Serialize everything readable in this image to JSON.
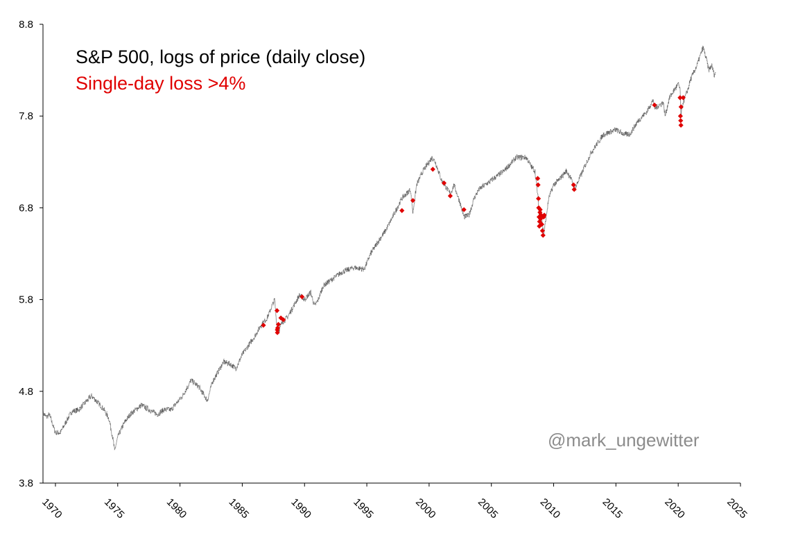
{
  "chart_data": {
    "type": "line",
    "title": "S&P 500, logs of price (daily close)",
    "subtitle": "Single-day loss >4%",
    "watermark": "@mark_ungewitter",
    "xlabel": "",
    "ylabel": "",
    "xlim": [
      1969,
      2025
    ],
    "ylim": [
      3.8,
      8.8
    ],
    "x_ticks": [
      1970,
      1975,
      1980,
      1985,
      1990,
      1995,
      2000,
      2005,
      2010,
      2015,
      2020,
      2025
    ],
    "y_ticks": [
      3.8,
      4.8,
      5.8,
      6.8,
      7.8,
      8.8
    ],
    "y_tick_labels": [
      "3.8",
      "4.8",
      "5.8",
      "6.8",
      "7.8",
      "8.8"
    ],
    "grid": false,
    "colors": {
      "price": "#555555",
      "loss": "#e00000",
      "title": "#000000",
      "subtitle": "#e00000",
      "watermark": "#8c8c8c"
    },
    "series": [
      {
        "name": "S&P 500 log price",
        "x": [
          1969.0,
          1969.3,
          1969.5,
          1970.0,
          1970.4,
          1970.9,
          1971.3,
          1971.9,
          1972.4,
          1972.9,
          1973.4,
          1973.9,
          1974.3,
          1974.6,
          1974.75,
          1975.0,
          1975.5,
          1976.0,
          1976.9,
          1977.5,
          1978.2,
          1978.7,
          1979.3,
          1979.9,
          1980.2,
          1980.9,
          1981.5,
          1982.2,
          1982.6,
          1983.0,
          1983.5,
          1984.0,
          1984.5,
          1985.0,
          1985.5,
          1986.0,
          1986.5,
          1987.0,
          1987.6,
          1987.81,
          1987.9,
          1988.2,
          1988.6,
          1989.0,
          1989.6,
          1990.0,
          1990.5,
          1990.8,
          1991.1,
          1991.5,
          1992.0,
          1993.0,
          1994.0,
          1994.8,
          1995.3,
          1996.0,
          1996.5,
          1997.0,
          1997.8,
          1998.5,
          1998.7,
          1999.0,
          1999.5,
          2000.0,
          2000.25,
          2000.5,
          2001.0,
          2001.7,
          2002.0,
          2002.5,
          2002.8,
          2003.2,
          2003.6,
          2004.0,
          2005.0,
          2006.0,
          2007.0,
          2007.8,
          2008.2,
          2008.5,
          2008.75,
          2008.85,
          2009.0,
          2009.2,
          2009.6,
          2010.0,
          2010.4,
          2011.0,
          2011.3,
          2011.7,
          2012.0,
          2013.0,
          2014.0,
          2015.0,
          2015.7,
          2016.1,
          2016.8,
          2017.5,
          2018.0,
          2018.1,
          2018.8,
          2018.95,
          2019.3,
          2020.0,
          2020.15,
          2020.22,
          2020.4,
          2020.8,
          2021.0,
          2021.5,
          2022.0,
          2022.3,
          2022.45,
          2022.7,
          2022.9,
          2023.0
        ],
        "y": [
          4.56,
          4.52,
          4.55,
          4.35,
          4.35,
          4.48,
          4.58,
          4.6,
          4.68,
          4.75,
          4.68,
          4.6,
          4.5,
          4.3,
          4.15,
          4.3,
          4.45,
          4.55,
          4.65,
          4.6,
          4.55,
          4.6,
          4.6,
          4.7,
          4.75,
          4.92,
          4.85,
          4.7,
          4.9,
          5.0,
          5.12,
          5.1,
          5.05,
          5.2,
          5.3,
          5.4,
          5.52,
          5.6,
          5.8,
          5.45,
          5.45,
          5.55,
          5.6,
          5.7,
          5.85,
          5.8,
          5.88,
          5.73,
          5.8,
          5.95,
          6.0,
          6.1,
          6.15,
          6.13,
          6.3,
          6.45,
          6.55,
          6.68,
          6.9,
          7.0,
          6.75,
          7.05,
          7.2,
          7.3,
          7.35,
          7.3,
          7.1,
          6.95,
          7.05,
          6.85,
          6.7,
          6.72,
          6.9,
          7.0,
          7.1,
          7.2,
          7.35,
          7.35,
          7.25,
          7.2,
          6.9,
          6.7,
          6.75,
          6.5,
          6.9,
          7.05,
          7.1,
          7.2,
          7.15,
          7.0,
          7.1,
          7.4,
          7.6,
          7.65,
          7.6,
          7.6,
          7.75,
          7.85,
          7.98,
          7.88,
          7.95,
          7.8,
          8.0,
          8.15,
          8.1,
          7.8,
          7.95,
          8.1,
          8.2,
          8.35,
          8.55,
          8.4,
          8.3,
          8.35,
          8.25,
          8.28
        ]
      },
      {
        "name": "Single-day loss >4%",
        "marker": "diamond",
        "x": [
          1986.7,
          1987.79,
          1987.81,
          1987.82,
          1987.84,
          1987.9,
          1988.1,
          1988.3,
          1989.8,
          1997.82,
          1998.7,
          2000.3,
          2001.2,
          2001.7,
          2002.8,
          2008.72,
          2008.75,
          2008.78,
          2008.8,
          2008.83,
          2008.85,
          2008.87,
          2008.9,
          2008.92,
          2008.95,
          2009.0,
          2009.05,
          2009.1,
          2009.15,
          2009.2,
          2009.25,
          2011.6,
          2011.65,
          2018.1,
          2020.15,
          2020.18,
          2020.2,
          2020.22,
          2020.23,
          2020.4
        ],
        "y": [
          5.52,
          5.68,
          5.47,
          5.44,
          5.49,
          5.53,
          5.6,
          5.58,
          5.83,
          6.77,
          6.88,
          7.22,
          7.07,
          6.93,
          6.78,
          7.12,
          7.05,
          6.9,
          6.8,
          6.7,
          6.6,
          6.65,
          6.75,
          6.78,
          6.68,
          6.72,
          6.62,
          6.55,
          6.5,
          6.7,
          6.72,
          7.05,
          7.0,
          7.92,
          8.0,
          7.8,
          7.75,
          7.7,
          7.9,
          8.0
        ]
      }
    ]
  }
}
